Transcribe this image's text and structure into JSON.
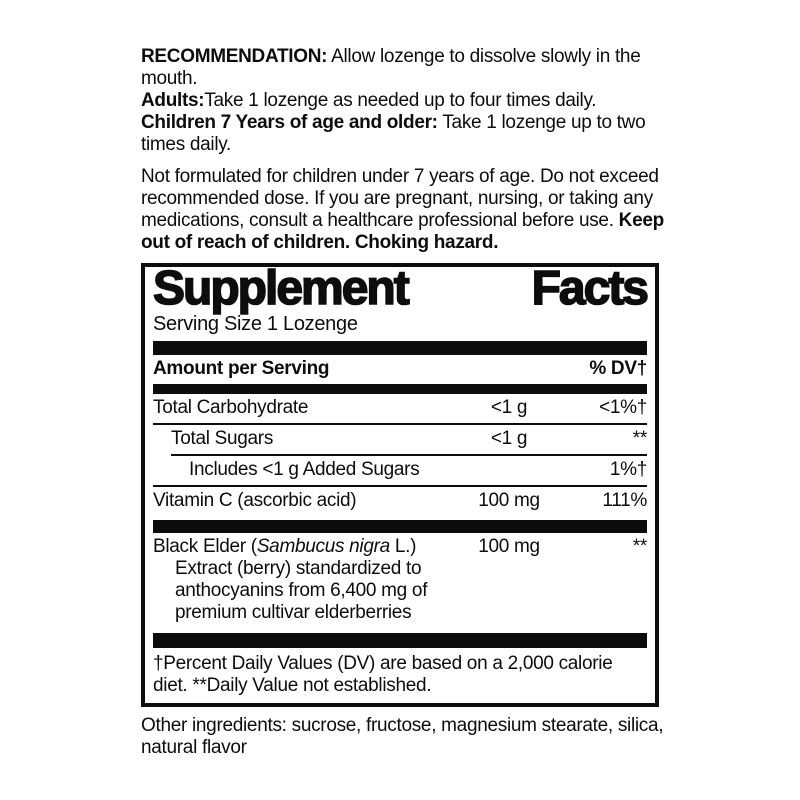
{
  "colors": {
    "ink": "#0d0d0d",
    "background": "#ffffff"
  },
  "directions": {
    "recommendation_label": "RECOMMENDATION:",
    "recommendation_text": " Allow lozenge to dissolve slowly in the mouth.",
    "adults_label": "Adults:",
    "adults_text": "Take 1 lozenge as needed up to four times daily.",
    "children_label": "Children 7 Years of age and older:",
    "children_text": " Take 1 lozenge up to two times daily."
  },
  "warning": {
    "text": "Not formulated for children under 7 years of age. Do not exceed recommended dose. If you are pregnant, nursing, or taking any medications, consult a healthcare professional before use. ",
    "bold_text": "Keep out of reach of children. Choking hazard."
  },
  "supplement_facts": {
    "title_left": "Supplement",
    "title_right": "Facts",
    "serving_size": "Serving Size 1 Lozenge",
    "header": {
      "amount_label": "Amount per Serving",
      "dv_label": "% DV†"
    },
    "rows": [
      {
        "name": "Total Carbohydrate",
        "amount": "<1 g",
        "dv": "<1%†"
      },
      {
        "name": "Total Sugars",
        "amount": "<1 g",
        "dv": "**"
      },
      {
        "name": "Includes <1 g Added Sugars",
        "amount": "",
        "dv": "1%†"
      },
      {
        "name": "Vitamin C (ascorbic acid)",
        "amount": "100 mg",
        "dv": "111%"
      }
    ],
    "botanical_row": {
      "name_prefix": "Black Elder (",
      "name_italic": "Sambucus nigra",
      "name_suffix": " L.) Extract (berry) standardized to anthocyanins from 6,400 mg of premium cultivar elderberries",
      "amount": "100 mg",
      "dv": "**"
    },
    "footnote": "†Percent Daily Values (DV) are based on a 2,000 calorie diet. **Daily Value not established."
  },
  "other_ingredients": {
    "label": "Other ingredients:",
    "text": " sucrose, fructose, magnesium stearate, silica, natural flavor"
  }
}
